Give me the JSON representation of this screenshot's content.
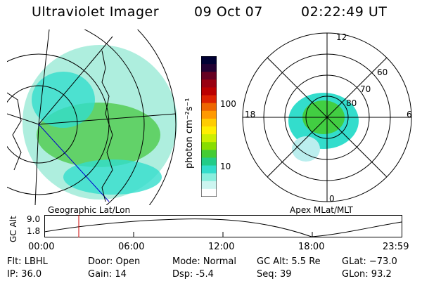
{
  "header": {
    "instrument": "Ultraviolet Imager",
    "date": "09 Oct 07",
    "time": "02:22:49 UT"
  },
  "colorbar": {
    "label": "photon cm⁻²s⁻¹",
    "ticks": [
      "100",
      "10"
    ],
    "colors": [
      "#000033",
      "#220033",
      "#660022",
      "#990011",
      "#bb0000",
      "#dd2200",
      "#ee6600",
      "#ff9900",
      "#ffcc00",
      "#ffee00",
      "#ccee00",
      "#88dd00",
      "#44cc33",
      "#22cc88",
      "#33ddcc",
      "#88eedd",
      "#ccf5f0",
      "#ffffff"
    ]
  },
  "left_panel": {
    "caption": "Geographic Lat/Lon"
  },
  "right_panel": {
    "caption": "Apex MLat/MLT",
    "mlt_labels": {
      "top": "12",
      "left": "18",
      "right": "6",
      "bottom": "0"
    },
    "lat_labels": [
      "60",
      "70",
      "80"
    ]
  },
  "altitude_plot": {
    "ylabel": "GC Alt",
    "yticks": [
      "9.0",
      "1.8"
    ],
    "xticks": [
      "00:00",
      "06:00",
      "12:00",
      "18:00",
      "23:59"
    ]
  },
  "info": {
    "flt": "Flt: LBHL",
    "ip": "IP: 36.0",
    "door": "Door: Open",
    "gain": "Gain: 14",
    "mode": "Mode: Normal",
    "dsp": "Dsp:   -5.4",
    "gc_alt": "GC Alt: 5.5 Re",
    "seq": "Seq: 39",
    "glat": "GLat: −73.0",
    "glon": "GLon:  93.2"
  },
  "colors": {
    "aurora_cyan": "#33ddcc",
    "aurora_green": "#44cc33",
    "marker": "#cc0000",
    "track": "#0000cc"
  }
}
